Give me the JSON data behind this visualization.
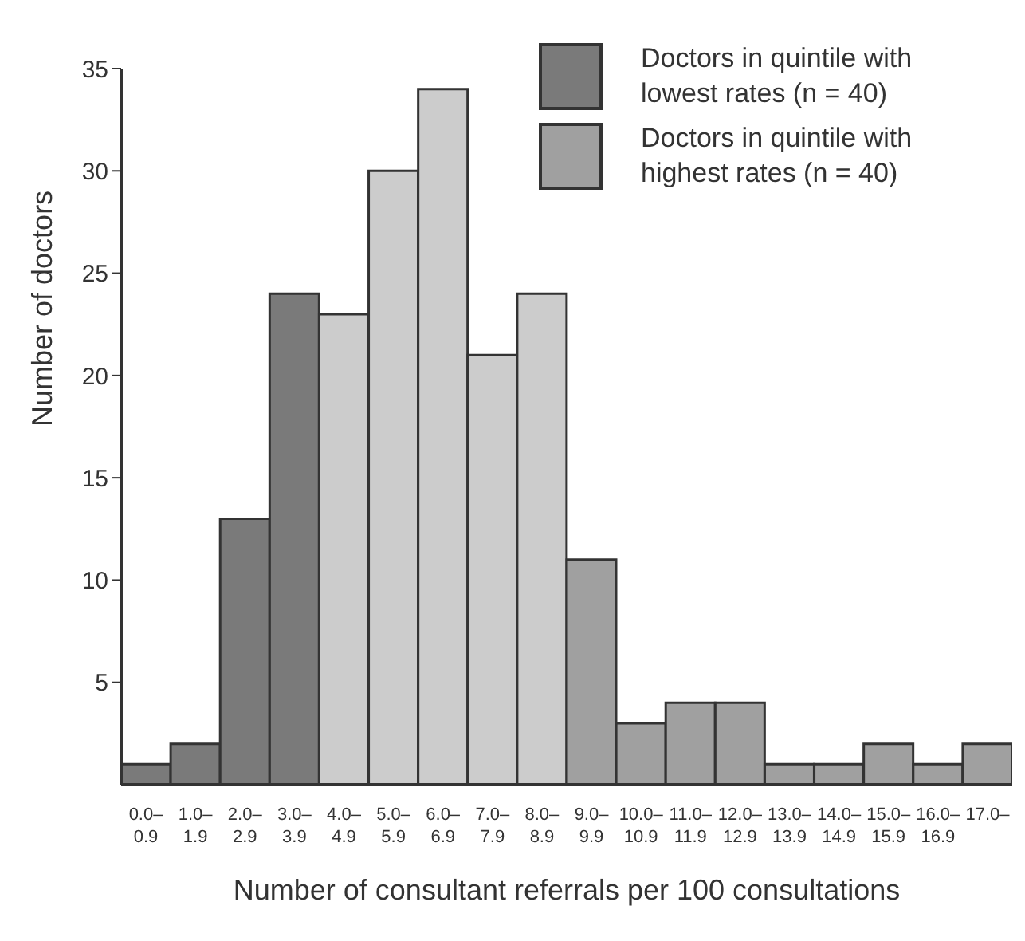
{
  "chart_data": {
    "type": "bar",
    "stacked": true,
    "xlabel": "Number of consultant referrals per 100 consultations",
    "ylabel": "Number of doctors",
    "categories": [
      "0.0–0.9",
      "1.0–1.9",
      "2.0–2.9",
      "3.0–3.9",
      "4.0–4.9",
      "5.0–5.9",
      "6.0–6.9",
      "7.0–7.9",
      "8.0–8.9",
      "9.0–9.9",
      "10.0–10.9",
      "11.0–11.9",
      "12.0–12.9",
      "13.0–13.9",
      "14.0–14.9",
      "15.0–15.9",
      "16.0–16.9",
      "17.0–"
    ],
    "series": [
      {
        "name": "Doctors in quintile with lowest rates (n = 40)",
        "color": "#7a7a7a",
        "values": [
          1,
          2,
          13,
          24,
          null,
          null,
          null,
          null,
          null,
          null,
          null,
          null,
          null,
          null,
          null,
          null,
          null,
          null
        ]
      },
      {
        "color": "#cccccc",
        "values": [
          null,
          null,
          null,
          null,
          23,
          30,
          34,
          21,
          24,
          null,
          null,
          null,
          null,
          null,
          null,
          null,
          null,
          null
        ]
      },
      {
        "name": "Doctors in quintile with highest rates (n = 40)",
        "color": "#a0a0a0",
        "values": [
          null,
          null,
          null,
          null,
          null,
          null,
          null,
          null,
          null,
          11,
          3,
          4,
          4,
          1,
          1,
          2,
          1,
          2
        ]
      }
    ],
    "ylim": [
      0,
      35
    ],
    "yticks": [
      5,
      10,
      15,
      20,
      25,
      30,
      35
    ],
    "legend": "top right",
    "grid": false
  }
}
